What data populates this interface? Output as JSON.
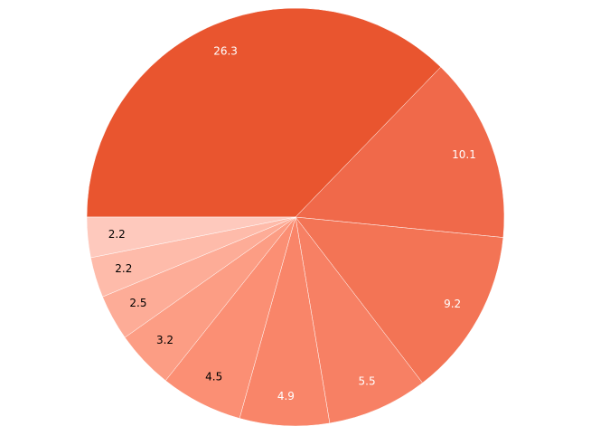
{
  "chart_data": {
    "type": "pie",
    "values": [
      26.3,
      10.1,
      9.2,
      5.5,
      4.9,
      4.5,
      3.2,
      2.5,
      2.2,
      2.2
    ],
    "colors": [
      "#e9552f",
      "#f0694a",
      "#f37455",
      "#f78064",
      "#f98569",
      "#fb8f74",
      "#fc9d84",
      "#fdac97",
      "#febbaa",
      "#fec9bd"
    ],
    "start_angle": 270,
    "direction": "clockwise"
  }
}
